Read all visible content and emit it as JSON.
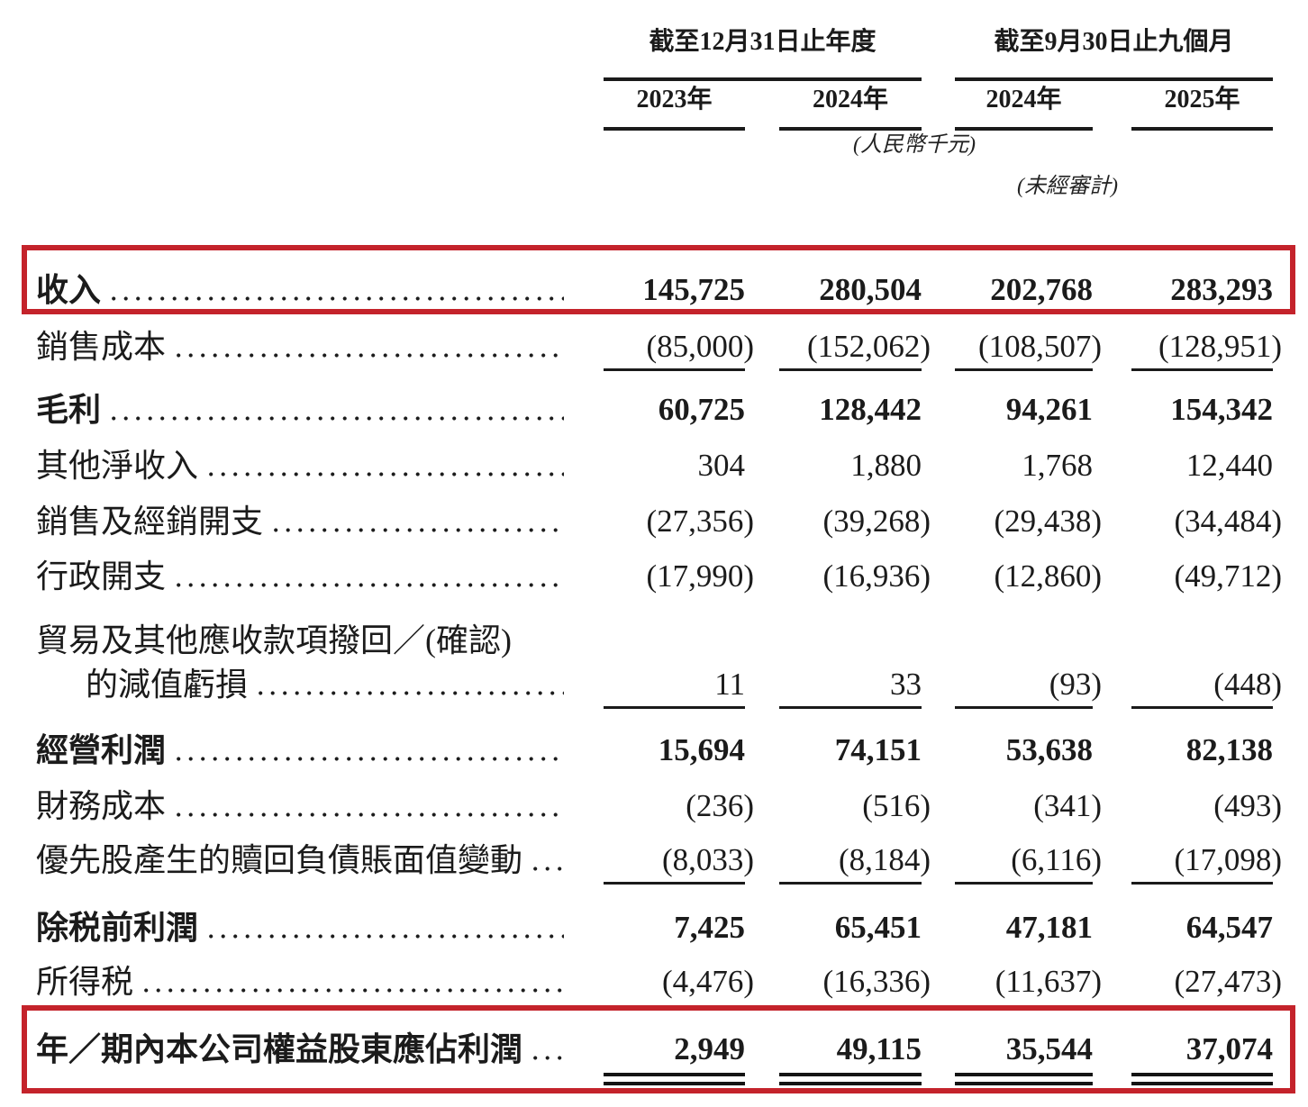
{
  "page": {
    "background": "#ffffff",
    "highlight_color": "#C4232B",
    "text_color": "#1b1b1b"
  },
  "table": {
    "column_groups": [
      {
        "title": "截至12月31日止年度",
        "years": [
          "2023年",
          "2024年"
        ]
      },
      {
        "title": "截至9月30日止九個月",
        "years": [
          "2024年",
          "2025年"
        ]
      }
    ],
    "notes": {
      "currency": "(人民幣千元)",
      "unaudited": "(未經審計)"
    },
    "rows": [
      {
        "label": "收入",
        "bold": true,
        "highlighted": true,
        "dots": true,
        "values": [
          "145,725",
          "280,504",
          "202,768",
          "283,293"
        ]
      },
      {
        "label": "銷售成本",
        "dots": true,
        "underline": "single",
        "values": [
          "(85,000)",
          "(152,062)",
          "(108,507)",
          "(128,951)"
        ]
      },
      {
        "label": "毛利",
        "bold": true,
        "dots": true,
        "values": [
          "60,725",
          "128,442",
          "94,261",
          "154,342"
        ]
      },
      {
        "label": "其他淨收入",
        "dots": true,
        "values": [
          "304",
          "1,880",
          "1,768",
          "12,440"
        ]
      },
      {
        "label": "銷售及經銷開支",
        "dots": true,
        "values": [
          "(27,356)",
          "(39,268)",
          "(29,438)",
          "(34,484)"
        ]
      },
      {
        "label": "行政開支",
        "dots": true,
        "values": [
          "(17,990)",
          "(16,936)",
          "(12,860)",
          "(49,712)"
        ]
      },
      {
        "label": "貿易及其他應收款項撥回／(確認)",
        "label_line2": "的減值虧損",
        "dots": true,
        "underline": "single",
        "values": [
          "11",
          "33",
          "(93)",
          "(448)"
        ]
      },
      {
        "label": "經營利潤",
        "bold": true,
        "dots": true,
        "values": [
          "15,694",
          "74,151",
          "53,638",
          "82,138"
        ]
      },
      {
        "label": "財務成本",
        "dots": true,
        "values": [
          "(236)",
          "(516)",
          "(341)",
          "(493)"
        ]
      },
      {
        "label": "優先股產生的贖回負債賬面值變動",
        "dots": true,
        "underline": "single",
        "values": [
          "(8,033)",
          "(8,184)",
          "(6,116)",
          "(17,098)"
        ]
      },
      {
        "label": "除税前利潤",
        "bold": true,
        "dots": true,
        "values": [
          "7,425",
          "65,451",
          "47,181",
          "64,547"
        ]
      },
      {
        "label": "所得税",
        "dots": true,
        "values": [
          "(4,476)",
          "(16,336)",
          "(11,637)",
          "(27,473)"
        ]
      },
      {
        "label": "年／期內本公司權益股東應佔利潤",
        "bold": true,
        "highlighted": true,
        "dots": true,
        "underline": "double",
        "values": [
          "2,949",
          "49,115",
          "35,544",
          "37,074"
        ]
      }
    ]
  }
}
